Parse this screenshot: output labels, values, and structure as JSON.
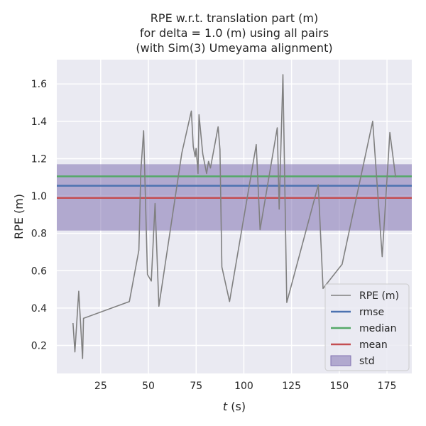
{
  "chart_data": {
    "type": "line",
    "title_lines": [
      "RPE w.r.t. translation part (m)",
      "for delta = 1.0 (m) using all pairs",
      "(with Sim(3) Umeyama alignment)"
    ],
    "xlabel_italic": "t",
    "xlabel_unit": " (s)",
    "ylabel": "RPE (m)",
    "xlim": [
      2,
      188
    ],
    "ylim": [
      0.05,
      1.73
    ],
    "xticks": [
      25,
      50,
      75,
      100,
      125,
      150,
      175
    ],
    "xtick_labels": [
      "25",
      "50",
      "75",
      "100",
      "125",
      "150",
      "175"
    ],
    "yticks": [
      0.2,
      0.4,
      0.6,
      0.8,
      1.0,
      1.2,
      1.4,
      1.6
    ],
    "ytick_labels": [
      "0.2",
      "0.4",
      "0.6",
      "0.8",
      "1.0",
      "1.2",
      "1.4",
      "1.6"
    ],
    "grid": true,
    "legend_position": "lower-right",
    "series": [
      {
        "name": "RPE (m)",
        "color": "#808080",
        "x": [
          10.5,
          11.5,
          13.5,
          15.5,
          16,
          40,
          45,
          46,
          47.5,
          49.5,
          51.5,
          53.5,
          55.5,
          67.5,
          72.5,
          73.5,
          74.5,
          75,
          76,
          76.5,
          78.5,
          80.5,
          81.5,
          82.5,
          86.5,
          87.5,
          88.5,
          92.5,
          106.5,
          108.5,
          117.5,
          118.5,
          120.5,
          122.5,
          139,
          141.5,
          151.5,
          167.5,
          172.5,
          176.5,
          179.5
        ],
        "y": [
          0.32,
          0.165,
          0.49,
          0.13,
          0.345,
          0.435,
          0.71,
          1.13,
          1.35,
          0.58,
          0.545,
          0.96,
          0.41,
          1.23,
          1.455,
          1.265,
          1.21,
          1.255,
          1.12,
          1.435,
          1.225,
          1.12,
          1.185,
          1.15,
          1.37,
          1.25,
          0.62,
          0.435,
          1.275,
          0.82,
          1.365,
          0.93,
          1.65,
          0.43,
          1.06,
          0.505,
          0.635,
          1.4,
          0.675,
          1.34,
          1.1
        ]
      }
    ],
    "stats": [
      {
        "name": "rmse",
        "value": 1.055,
        "color": "#4c72b0"
      },
      {
        "name": "median",
        "value": 1.105,
        "color": "#55a868"
      },
      {
        "name": "mean",
        "value": 0.99,
        "color": "#c44e52"
      }
    ],
    "std_band": {
      "name": "std",
      "low": 0.815,
      "high": 1.17,
      "color": "#8172b2",
      "opacity": 0.55
    },
    "background_color": "#eaeaf2",
    "legend_labels": [
      "RPE (m)",
      "rmse",
      "median",
      "mean",
      "std"
    ]
  }
}
